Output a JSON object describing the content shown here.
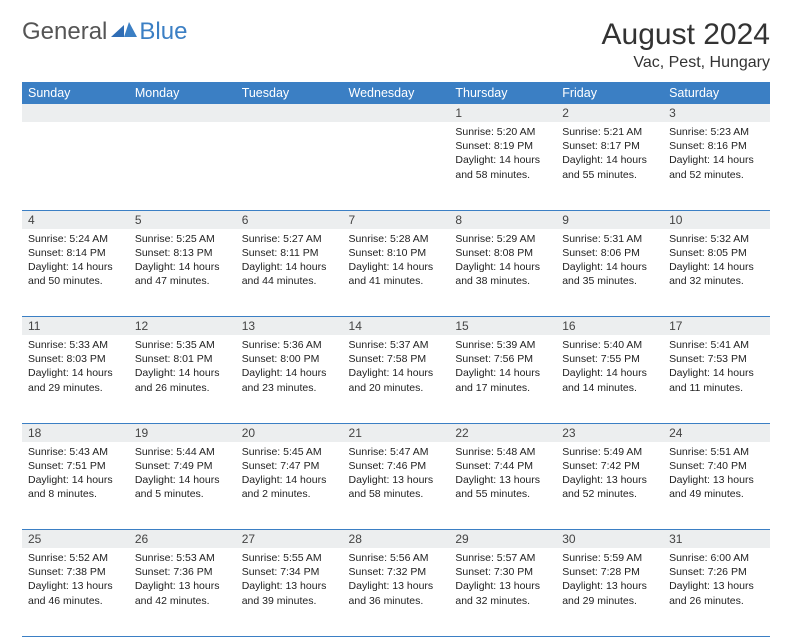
{
  "header": {
    "logo_text_1": "General",
    "logo_text_2": "Blue",
    "title": "August 2024",
    "location": "Vac, Pest, Hungary"
  },
  "colors": {
    "header_blue": "#3b7fc4",
    "header_text": "#ffffff",
    "daynum_bg": "#eceeef",
    "body_text": "#222222",
    "page_bg": "#ffffff"
  },
  "days_of_week": [
    "Sunday",
    "Monday",
    "Tuesday",
    "Wednesday",
    "Thursday",
    "Friday",
    "Saturday"
  ],
  "weeks": [
    [
      null,
      null,
      null,
      null,
      {
        "n": "1",
        "sunrise": "5:20 AM",
        "sunset": "8:19 PM",
        "daylight": "14 hours and 58 minutes."
      },
      {
        "n": "2",
        "sunrise": "5:21 AM",
        "sunset": "8:17 PM",
        "daylight": "14 hours and 55 minutes."
      },
      {
        "n": "3",
        "sunrise": "5:23 AM",
        "sunset": "8:16 PM",
        "daylight": "14 hours and 52 minutes."
      }
    ],
    [
      {
        "n": "4",
        "sunrise": "5:24 AM",
        "sunset": "8:14 PM",
        "daylight": "14 hours and 50 minutes."
      },
      {
        "n": "5",
        "sunrise": "5:25 AM",
        "sunset": "8:13 PM",
        "daylight": "14 hours and 47 minutes."
      },
      {
        "n": "6",
        "sunrise": "5:27 AM",
        "sunset": "8:11 PM",
        "daylight": "14 hours and 44 minutes."
      },
      {
        "n": "7",
        "sunrise": "5:28 AM",
        "sunset": "8:10 PM",
        "daylight": "14 hours and 41 minutes."
      },
      {
        "n": "8",
        "sunrise": "5:29 AM",
        "sunset": "8:08 PM",
        "daylight": "14 hours and 38 minutes."
      },
      {
        "n": "9",
        "sunrise": "5:31 AM",
        "sunset": "8:06 PM",
        "daylight": "14 hours and 35 minutes."
      },
      {
        "n": "10",
        "sunrise": "5:32 AM",
        "sunset": "8:05 PM",
        "daylight": "14 hours and 32 minutes."
      }
    ],
    [
      {
        "n": "11",
        "sunrise": "5:33 AM",
        "sunset": "8:03 PM",
        "daylight": "14 hours and 29 minutes."
      },
      {
        "n": "12",
        "sunrise": "5:35 AM",
        "sunset": "8:01 PM",
        "daylight": "14 hours and 26 minutes."
      },
      {
        "n": "13",
        "sunrise": "5:36 AM",
        "sunset": "8:00 PM",
        "daylight": "14 hours and 23 minutes."
      },
      {
        "n": "14",
        "sunrise": "5:37 AM",
        "sunset": "7:58 PM",
        "daylight": "14 hours and 20 minutes."
      },
      {
        "n": "15",
        "sunrise": "5:39 AM",
        "sunset": "7:56 PM",
        "daylight": "14 hours and 17 minutes."
      },
      {
        "n": "16",
        "sunrise": "5:40 AM",
        "sunset": "7:55 PM",
        "daylight": "14 hours and 14 minutes."
      },
      {
        "n": "17",
        "sunrise": "5:41 AM",
        "sunset": "7:53 PM",
        "daylight": "14 hours and 11 minutes."
      }
    ],
    [
      {
        "n": "18",
        "sunrise": "5:43 AM",
        "sunset": "7:51 PM",
        "daylight": "14 hours and 8 minutes."
      },
      {
        "n": "19",
        "sunrise": "5:44 AM",
        "sunset": "7:49 PM",
        "daylight": "14 hours and 5 minutes."
      },
      {
        "n": "20",
        "sunrise": "5:45 AM",
        "sunset": "7:47 PM",
        "daylight": "14 hours and 2 minutes."
      },
      {
        "n": "21",
        "sunrise": "5:47 AM",
        "sunset": "7:46 PM",
        "daylight": "13 hours and 58 minutes."
      },
      {
        "n": "22",
        "sunrise": "5:48 AM",
        "sunset": "7:44 PM",
        "daylight": "13 hours and 55 minutes."
      },
      {
        "n": "23",
        "sunrise": "5:49 AM",
        "sunset": "7:42 PM",
        "daylight": "13 hours and 52 minutes."
      },
      {
        "n": "24",
        "sunrise": "5:51 AM",
        "sunset": "7:40 PM",
        "daylight": "13 hours and 49 minutes."
      }
    ],
    [
      {
        "n": "25",
        "sunrise": "5:52 AM",
        "sunset": "7:38 PM",
        "daylight": "13 hours and 46 minutes."
      },
      {
        "n": "26",
        "sunrise": "5:53 AM",
        "sunset": "7:36 PM",
        "daylight": "13 hours and 42 minutes."
      },
      {
        "n": "27",
        "sunrise": "5:55 AM",
        "sunset": "7:34 PM",
        "daylight": "13 hours and 39 minutes."
      },
      {
        "n": "28",
        "sunrise": "5:56 AM",
        "sunset": "7:32 PM",
        "daylight": "13 hours and 36 minutes."
      },
      {
        "n": "29",
        "sunrise": "5:57 AM",
        "sunset": "7:30 PM",
        "daylight": "13 hours and 32 minutes."
      },
      {
        "n": "30",
        "sunrise": "5:59 AM",
        "sunset": "7:28 PM",
        "daylight": "13 hours and 29 minutes."
      },
      {
        "n": "31",
        "sunrise": "6:00 AM",
        "sunset": "7:26 PM",
        "daylight": "13 hours and 26 minutes."
      }
    ]
  ],
  "labels": {
    "sunrise": "Sunrise: ",
    "sunset": "Sunset: ",
    "daylight": "Daylight: "
  }
}
